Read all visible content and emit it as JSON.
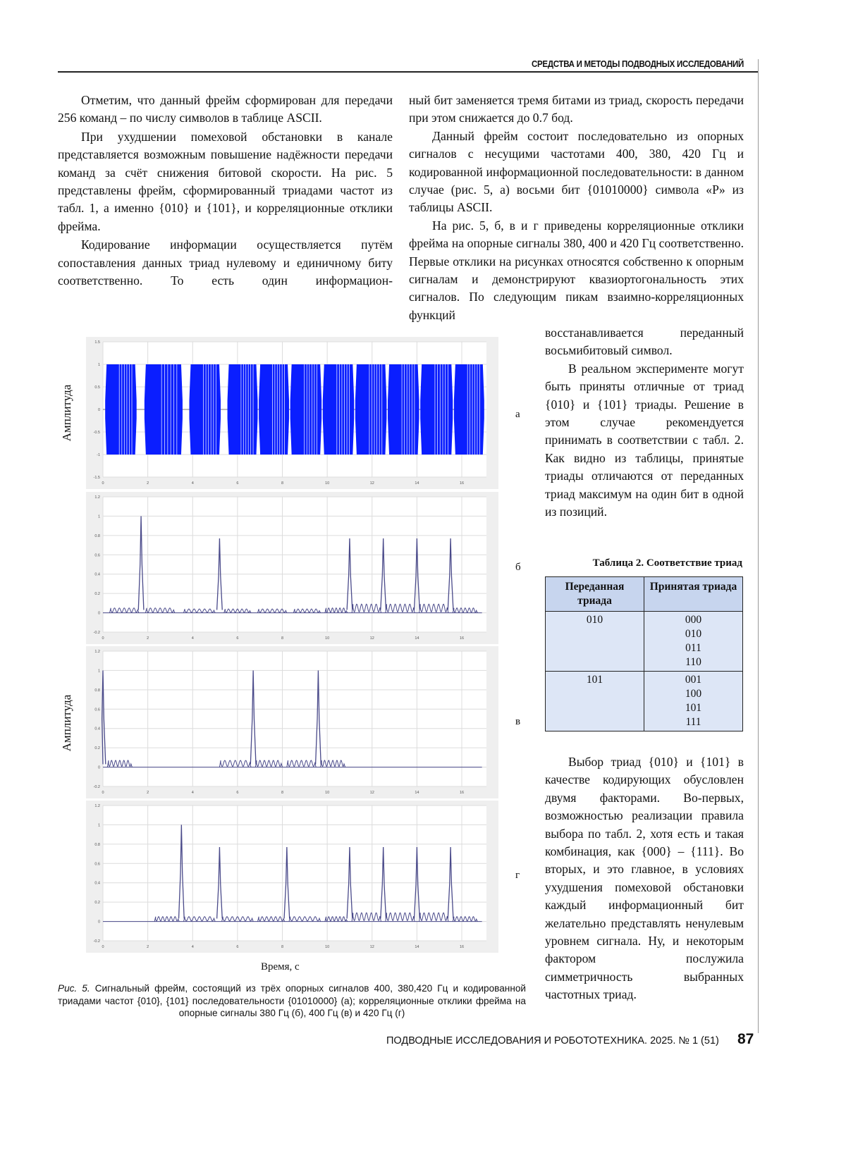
{
  "header": {
    "section": "СРЕДСТВА И МЕТОДЫ ПОДВОДНЫХ ИССЛЕДОВАНИЙ"
  },
  "left_column": {
    "p1": "Отметим, что данный фрейм сформирован для передачи 256 команд – по числу символов в таблице ASCII.",
    "p2": "При ухудшении помеховой обстановки в канале представляется возможным повышение надёжности передачи команд за счёт снижения битовой скорости. На рис. 5 представлены фрейм, сформированный триадами частот из табл. 1, а именно {010} и {101}, и корреляционные отклики фрейма.",
    "p3": "Кодирование информации осуществляется путём сопоставления данных триад нулевому и единичному биту соответственно. То есть один информацион-"
  },
  "right_column": {
    "p4": "ный бит заменяется тремя битами из триад, скорость передачи при этом снижается до 0.7 бод.",
    "p5": "Данный фрейм состоит последовательно из опорных сигналов с несущими частотами 400, 380, 420 Гц и кодированной информационной последовательности: в данном случае (рис. 5, а) восьми бит {01010000} символа «P» из таблицы ASCII.",
    "p6a": "На рис. 5, б, в и г приведены корреляционные отклики фрейма на опорные сигналы 380, 400 и 420 Гц соответственно. Первые отклики на рисунках относятся собственно к опорным сигналам и демонстрируют квазиортогональность этих сигналов. По следующим пикам взаимно-корреляционных функций",
    "p6b": "восстанавливается переданный восьмибитовый символ.",
    "p7": "В реальном эксперименте могут быть приняты отличные от триад {010} и {101} триады. Решение в этом случае рекомендуется принимать в соответствии с табл. 2. Как видно из таблицы, принятые триады отличаются от переданных триад максимум на один бит в одной из позиций.",
    "p8": "Выбор триад {010} и {101} в качестве кодирующих обусловлен двумя факторами. Во-первых, возможностью реализации правила выбора по табл. 2, хотя есть и такая комбинация, как {000} – {111}. Во вторых, и это главное, в условиях ухудшения помеховой обстановки каждый информационный бит желательно представлять ненулевым уровнем сигнала. Ну, и некоторым фактором послужила симметричность выбранных частотных триад."
  },
  "table2": {
    "caption": "Таблица 2. Соответствие триад",
    "headers": [
      "Переданная триада",
      "Принятая триада"
    ],
    "rows": [
      {
        "sent": "010",
        "received": [
          "000",
          "010",
          "011",
          "110"
        ]
      },
      {
        "sent": "101",
        "received": [
          "001",
          "100",
          "101",
          "111"
        ]
      }
    ]
  },
  "figure": {
    "ylabel": "Амплитуда",
    "xlabel": "Время, с",
    "caption_prefix": "Рис. 5.",
    "caption": "Сигнальный фрейм, состоящий из трёх опорных сигналов 400, 380,420 Гц и кодированной триадами частот {010}, {101} последовательности {01010000} (а); корреляционные отклики фрейма на опорные сигналы 380 Гц (б), 400 Гц (в) и 420 Гц (г)",
    "panel_labels": [
      "а",
      "б",
      "в",
      "г"
    ]
  },
  "chart_data": [
    {
      "type": "line",
      "panel": "а",
      "xlim": [
        0,
        17.1
      ],
      "ylim": [
        -1.5,
        1.5
      ],
      "xticks": [
        "0",
        "2",
        "4",
        "6",
        "8",
        "10",
        "12",
        "14",
        "16"
      ],
      "yticks": [
        "1.5",
        "1",
        "0.5",
        "0",
        "-0.5",
        "-1",
        "-1.5"
      ],
      "color": "#0a1eff",
      "grid": true,
      "bursts_amplitude": 1,
      "bursts": [
        [
          0.1,
          1.5
        ],
        [
          1.85,
          3.55
        ],
        [
          3.85,
          5.25
        ],
        [
          5.55,
          6.9
        ],
        [
          6.95,
          8.3
        ],
        [
          8.35,
          9.75
        ],
        [
          9.8,
          11.2
        ],
        [
          11.25,
          12.65
        ],
        [
          12.7,
          14.1
        ],
        [
          14.15,
          15.6
        ],
        [
          15.65,
          17.0
        ]
      ]
    },
    {
      "type": "line",
      "panel": "б",
      "xlim": [
        0,
        17.1
      ],
      "ylim": [
        -0.2,
        1.2
      ],
      "xticks": [
        "0",
        "2",
        "4",
        "6",
        "8",
        "10",
        "12",
        "14",
        "16"
      ],
      "yticks": [
        "1.2",
        "1",
        "0.8",
        "0.6",
        "0.4",
        "0.2",
        "0",
        "-0.2"
      ],
      "color": "#4a4a8a",
      "grid": true,
      "peaks": [
        [
          1.7,
          1.0
        ],
        [
          5.2,
          0.77
        ],
        [
          11.0,
          0.77
        ],
        [
          12.5,
          0.77
        ],
        [
          14.0,
          0.77
        ],
        [
          15.5,
          0.77
        ]
      ],
      "sidelobes": [
        [
          0.3,
          1.6,
          0.05
        ],
        [
          1.9,
          3.2,
          0.05
        ],
        [
          3.6,
          5.0,
          0.04
        ],
        [
          5.4,
          6.6,
          0.04
        ],
        [
          6.9,
          8.2,
          0.04
        ],
        [
          8.5,
          9.7,
          0.04
        ],
        [
          9.9,
          10.9,
          0.05
        ],
        [
          11.1,
          12.4,
          0.09
        ],
        [
          12.6,
          13.9,
          0.09
        ],
        [
          14.1,
          15.4,
          0.09
        ],
        [
          15.6,
          16.7,
          0.05
        ]
      ]
    },
    {
      "type": "line",
      "panel": "в",
      "xlim": [
        0,
        17.1
      ],
      "ylim": [
        -0.2,
        1.2
      ],
      "xticks": [
        "0",
        "2",
        "4",
        "6",
        "8",
        "10",
        "12",
        "14",
        "16"
      ],
      "yticks": [
        "1.2",
        "1",
        "0.8",
        "0.6",
        "0.4",
        "0.2",
        "0",
        "-0.2"
      ],
      "color": "#4a4a8a",
      "grid": true,
      "peaks": [
        [
          0.0,
          1.0
        ],
        [
          6.7,
          1.0
        ],
        [
          9.6,
          1.0
        ]
      ],
      "sidelobes": [
        [
          0.2,
          1.3,
          0.07
        ],
        [
          5.2,
          6.6,
          0.07
        ],
        [
          6.8,
          8.0,
          0.07
        ],
        [
          8.2,
          9.5,
          0.07
        ],
        [
          9.7,
          10.8,
          0.07
        ]
      ]
    },
    {
      "type": "line",
      "panel": "г",
      "xlim": [
        0,
        17.1
      ],
      "ylim": [
        -0.2,
        1.2
      ],
      "xticks": [
        "0",
        "2",
        "4",
        "6",
        "8",
        "10",
        "12",
        "14",
        "16"
      ],
      "yticks": [
        "1.2",
        "1",
        "0.8",
        "0.6",
        "0.4",
        "0.2",
        "0",
        "-0.2"
      ],
      "color": "#4a4a8a",
      "grid": true,
      "peaks": [
        [
          3.5,
          1.0
        ],
        [
          5.2,
          0.77
        ],
        [
          8.2,
          0.77
        ],
        [
          11.0,
          0.77
        ],
        [
          12.5,
          0.77
        ],
        [
          14.0,
          0.77
        ],
        [
          15.5,
          0.77
        ]
      ],
      "sidelobes": [
        [
          2.3,
          3.4,
          0.05
        ],
        [
          3.6,
          5.0,
          0.05
        ],
        [
          5.3,
          6.7,
          0.05
        ],
        [
          6.9,
          8.1,
          0.05
        ],
        [
          8.3,
          9.7,
          0.05
        ],
        [
          9.9,
          10.9,
          0.05
        ],
        [
          11.1,
          12.4,
          0.09
        ],
        [
          12.6,
          13.9,
          0.09
        ],
        [
          14.1,
          15.4,
          0.09
        ],
        [
          15.6,
          16.7,
          0.05
        ]
      ]
    }
  ],
  "footer": {
    "journal": "ПОДВОДНЫЕ ИССЛЕДОВАНИЯ И РОБОТОТЕХНИКА. 2025. № 1 (51)",
    "page": "87"
  }
}
